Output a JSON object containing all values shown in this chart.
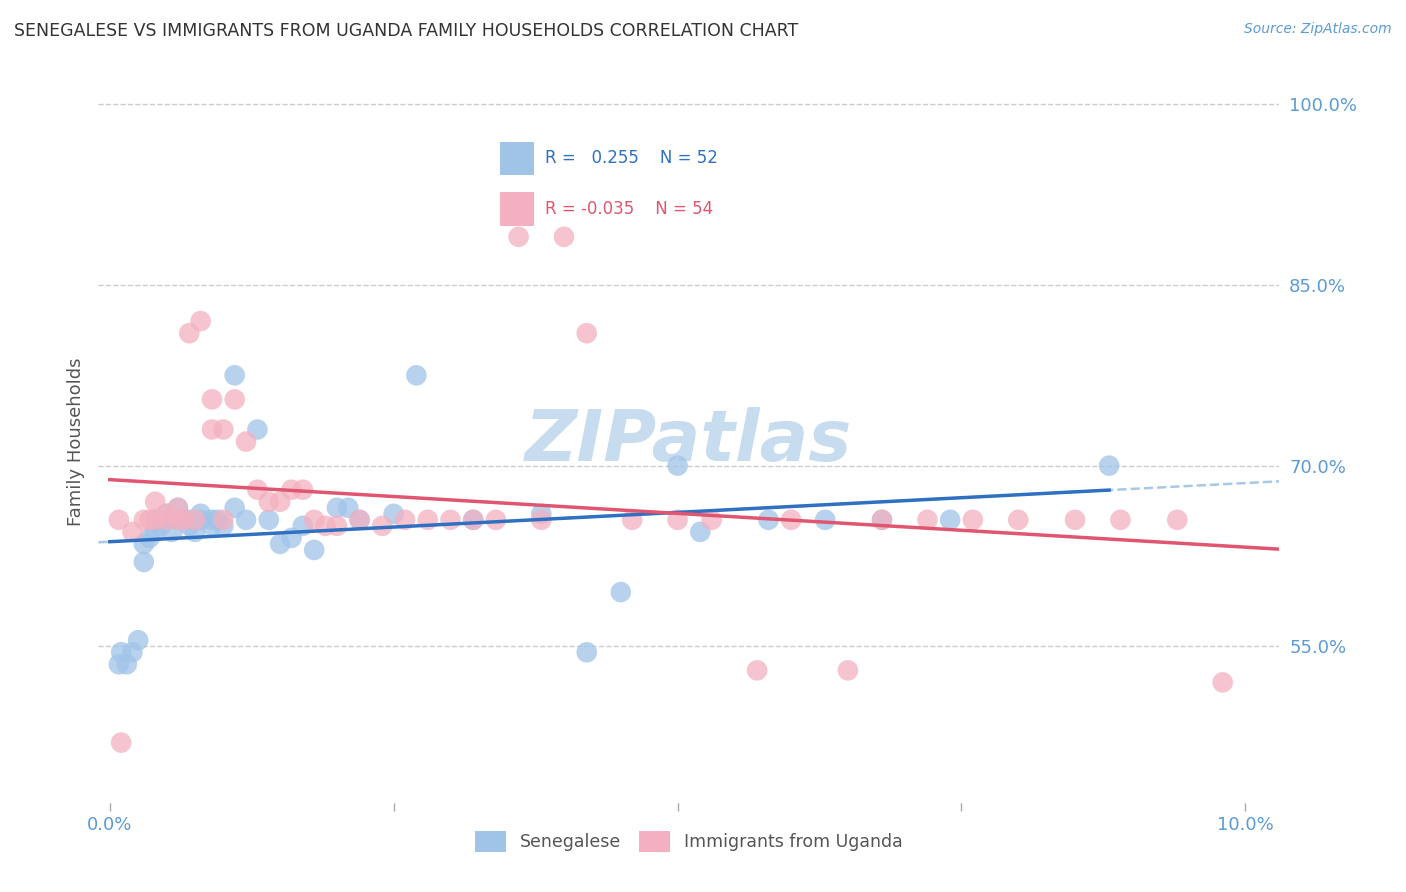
{
  "title": "SENEGALESE VS IMMIGRANTS FROM UGANDA FAMILY HOUSEHOLDS CORRELATION CHART",
  "source": "Source: ZipAtlas.com",
  "ylabel": "Family Households",
  "ylim": [
    0.42,
    1.02
  ],
  "xlim": [
    -0.001,
    0.103
  ],
  "yticks": [
    0.55,
    0.7,
    0.85,
    1.0
  ],
  "ytick_labels": [
    "55.0%",
    "70.0%",
    "85.0%",
    "100.0%"
  ],
  "xticks": [
    0.0,
    0.025,
    0.05,
    0.075,
    0.1
  ],
  "xtick_labels": [
    "0.0%",
    "",
    "",
    "",
    "10.0%"
  ],
  "blue_R": "0.255",
  "blue_N": "52",
  "pink_R": "-0.035",
  "pink_N": "54",
  "blue_color": "#a0c4e8",
  "pink_color": "#f4b0c0",
  "trend_blue_color": "#3070c0",
  "trend_pink_color": "#e05570",
  "blue_points_x": [
    0.0008,
    0.001,
    0.0015,
    0.002,
    0.0025,
    0.003,
    0.003,
    0.0035,
    0.004,
    0.004,
    0.0045,
    0.005,
    0.005,
    0.0055,
    0.006,
    0.006,
    0.006,
    0.0065,
    0.007,
    0.007,
    0.0075,
    0.008,
    0.008,
    0.009,
    0.009,
    0.0095,
    0.01,
    0.011,
    0.011,
    0.012,
    0.013,
    0.014,
    0.015,
    0.016,
    0.017,
    0.018,
    0.02,
    0.021,
    0.022,
    0.025,
    0.027,
    0.032,
    0.038,
    0.042,
    0.045,
    0.05,
    0.052,
    0.058,
    0.063,
    0.068,
    0.074,
    0.088
  ],
  "blue_points_y": [
    0.535,
    0.545,
    0.535,
    0.545,
    0.555,
    0.635,
    0.62,
    0.64,
    0.645,
    0.655,
    0.65,
    0.66,
    0.655,
    0.645,
    0.655,
    0.655,
    0.665,
    0.655,
    0.65,
    0.655,
    0.645,
    0.655,
    0.66,
    0.655,
    0.65,
    0.655,
    0.65,
    0.775,
    0.665,
    0.655,
    0.73,
    0.655,
    0.635,
    0.64,
    0.65,
    0.63,
    0.665,
    0.665,
    0.655,
    0.66,
    0.775,
    0.655,
    0.66,
    0.545,
    0.595,
    0.7,
    0.645,
    0.655,
    0.655,
    0.655,
    0.655,
    0.7
  ],
  "pink_points_x": [
    0.0008,
    0.001,
    0.002,
    0.003,
    0.0035,
    0.004,
    0.004,
    0.005,
    0.005,
    0.006,
    0.006,
    0.0065,
    0.007,
    0.0075,
    0.008,
    0.009,
    0.009,
    0.01,
    0.01,
    0.011,
    0.012,
    0.013,
    0.014,
    0.015,
    0.016,
    0.017,
    0.018,
    0.019,
    0.02,
    0.022,
    0.024,
    0.026,
    0.028,
    0.03,
    0.032,
    0.034,
    0.036,
    0.038,
    0.04,
    0.042,
    0.046,
    0.05,
    0.053,
    0.057,
    0.06,
    0.065,
    0.068,
    0.072,
    0.076,
    0.08,
    0.085,
    0.089,
    0.094,
    0.098
  ],
  "pink_points_y": [
    0.655,
    0.47,
    0.645,
    0.655,
    0.655,
    0.655,
    0.67,
    0.655,
    0.66,
    0.655,
    0.665,
    0.655,
    0.81,
    0.655,
    0.82,
    0.73,
    0.755,
    0.73,
    0.655,
    0.755,
    0.72,
    0.68,
    0.67,
    0.67,
    0.68,
    0.68,
    0.655,
    0.65,
    0.65,
    0.655,
    0.65,
    0.655,
    0.655,
    0.655,
    0.655,
    0.655,
    0.89,
    0.655,
    0.89,
    0.81,
    0.655,
    0.655,
    0.655,
    0.53,
    0.655,
    0.53,
    0.655,
    0.655,
    0.655,
    0.655,
    0.655,
    0.655,
    0.655,
    0.52
  ],
  "background_color": "#ffffff",
  "grid_color": "#cccccc",
  "title_color": "#333333",
  "axis_label_color": "#5b9bd5",
  "ylabel_color": "#555555",
  "watermark_text": "ZIPatlas",
  "watermark_color": "#c8dcf0",
  "dashed_line_color": "#a8c8e8",
  "legend_box_color": "#dddddd"
}
